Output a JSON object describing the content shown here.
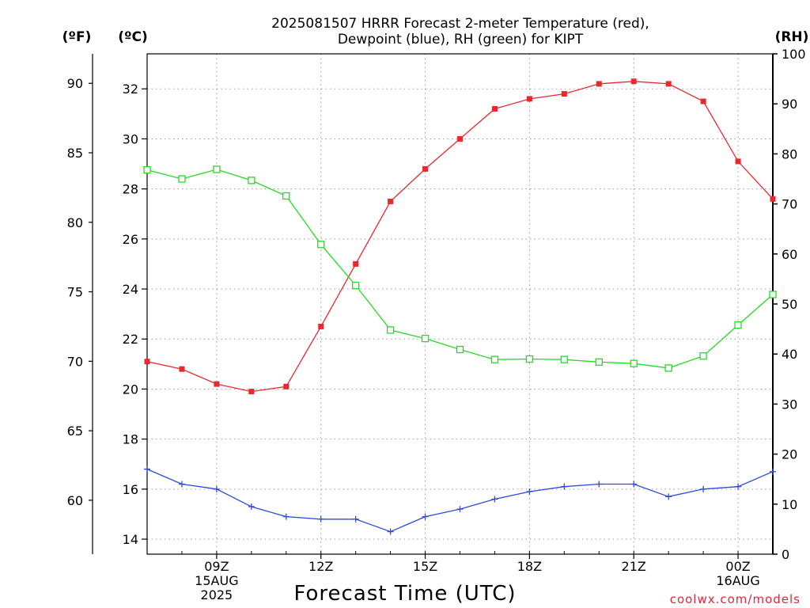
{
  "chart_data": {
    "type": "line",
    "title_lines": [
      "2025081507 HRRR Forecast 2-meter Temperature (red),",
      "Dewpoint (blue), RH (green) for KIPT"
    ],
    "xlabel": "Forecast Time (UTC)",
    "credit": "coolwx.com/models",
    "units": {
      "fahrenheit": "(ºF)",
      "celsius": "(ºC)",
      "rh": "(RH)"
    },
    "x_hours": [
      7,
      8,
      9,
      10,
      11,
      12,
      13,
      14,
      15,
      16,
      17,
      18,
      19,
      20,
      21,
      22,
      23,
      24,
      25
    ],
    "x_ticks": [
      {
        "hour": 9,
        "lines": [
          "09Z",
          "15AUG",
          "2025"
        ]
      },
      {
        "hour": 12,
        "lines": [
          "12Z"
        ]
      },
      {
        "hour": 15,
        "lines": [
          "15Z"
        ]
      },
      {
        "hour": 18,
        "lines": [
          "18Z"
        ]
      },
      {
        "hour": 21,
        "lines": [
          "21Z"
        ]
      },
      {
        "hour": 24,
        "lines": [
          "00Z",
          "16AUG"
        ]
      }
    ],
    "xlim": [
      7,
      25
    ],
    "celsius_axis": {
      "ylim": [
        13.4,
        33.4
      ],
      "ticks": [
        14,
        16,
        18,
        20,
        22,
        24,
        26,
        28,
        30,
        32
      ]
    },
    "fahrenheit_axis": {
      "ticks": [
        60,
        65,
        70,
        75,
        80,
        85,
        90
      ]
    },
    "rh_axis": {
      "ylim": [
        0,
        100
      ],
      "ticks": [
        0,
        10,
        20,
        30,
        40,
        50,
        60,
        70,
        80,
        90,
        100
      ]
    },
    "grid": true,
    "series": [
      {
        "name": "Temperature",
        "color": "#e8292f",
        "axis": "celsius",
        "marker": "filled-square",
        "values": [
          21.1,
          20.8,
          20.2,
          19.9,
          20.1,
          22.5,
          25.0,
          27.5,
          28.8,
          30.0,
          31.2,
          31.6,
          31.8,
          32.2,
          32.3,
          32.2,
          31.5,
          29.1,
          27.6
        ]
      },
      {
        "name": "Dewpoint",
        "color": "#2a4ce0",
        "axis": "celsius",
        "marker": "plus",
        "values": [
          16.8,
          16.2,
          16.0,
          15.3,
          14.9,
          14.8,
          14.8,
          14.3,
          14.9,
          15.2,
          15.6,
          15.9,
          16.1,
          16.2,
          16.2,
          15.7,
          16.0,
          16.1,
          16.7
        ]
      },
      {
        "name": "RH",
        "color": "#22dd22",
        "axis": "rh",
        "marker": "open-square",
        "values": [
          76.8,
          75.0,
          76.9,
          74.7,
          71.6,
          61.9,
          53.7,
          44.8,
          43.1,
          40.9,
          38.9,
          39.0,
          38.9,
          38.4,
          38.1,
          37.2,
          39.6,
          45.8,
          51.9
        ]
      }
    ]
  }
}
